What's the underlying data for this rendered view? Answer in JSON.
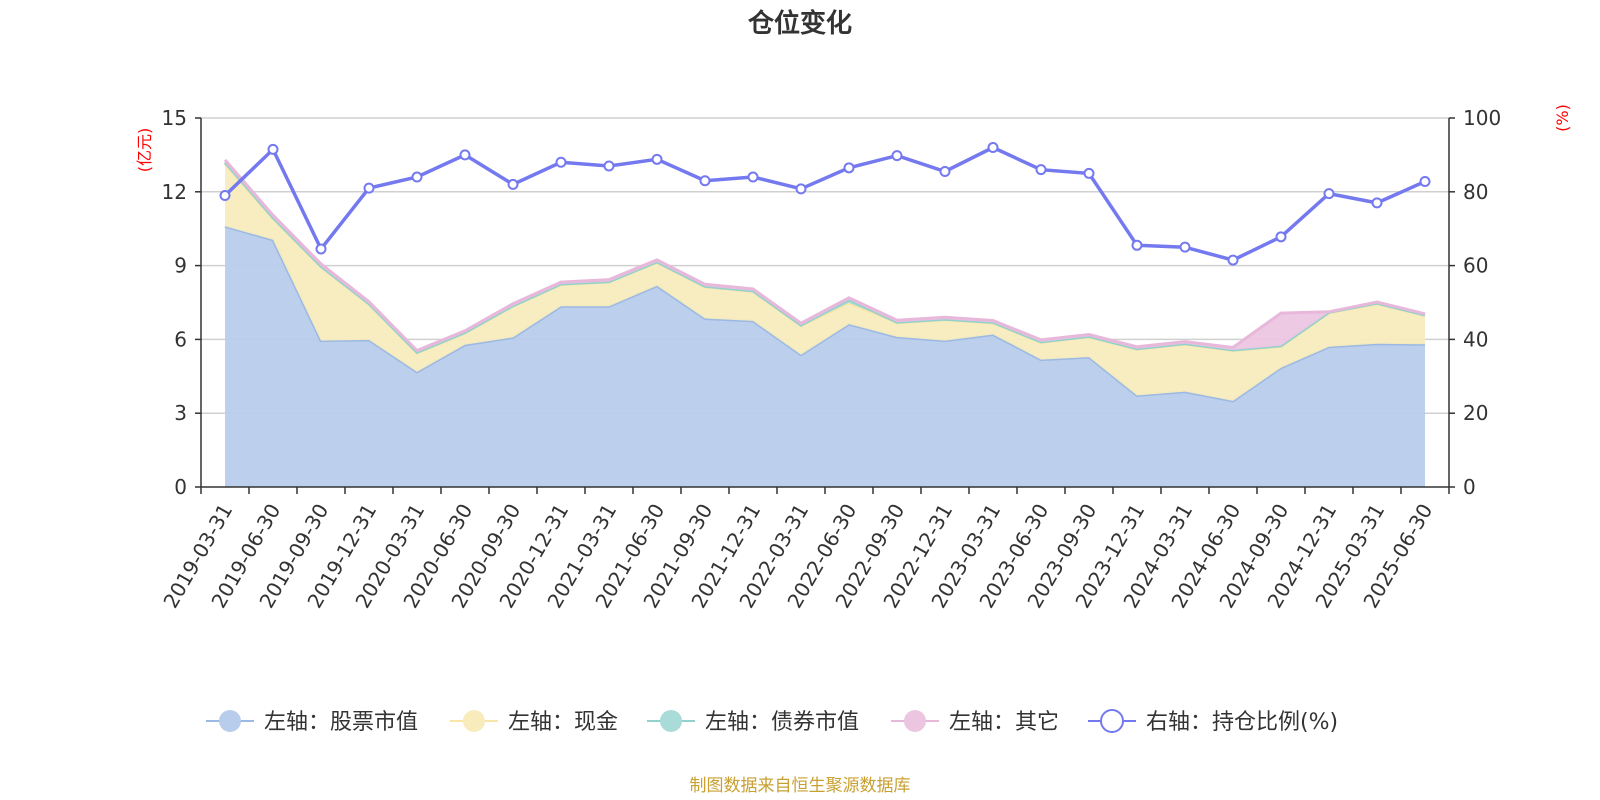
{
  "chart_data": {
    "type": "area",
    "title": "仓位变化",
    "left_axis": {
      "unit_label": "(亿元)",
      "ylim": [
        0,
        15
      ],
      "ticks": [
        "0",
        "3",
        "6",
        "9",
        "12",
        "15"
      ],
      "color": "#ff0000"
    },
    "right_axis": {
      "unit_label": "(%)",
      "ylim": [
        0,
        100
      ],
      "ticks": [
        "0",
        "20",
        "40",
        "60",
        "80",
        "100"
      ],
      "color": "#ff0000"
    },
    "grid": true,
    "legend_position": "bottom",
    "categories": [
      "2019-03-31",
      "2019-06-30",
      "2019-09-30",
      "2019-12-31",
      "2020-03-31",
      "2020-06-30",
      "2020-09-30",
      "2020-12-31",
      "2021-03-31",
      "2021-06-30",
      "2021-09-30",
      "2021-12-31",
      "2022-03-31",
      "2022-06-30",
      "2022-09-30",
      "2022-12-31",
      "2023-03-31",
      "2023-06-30",
      "2023-09-30",
      "2023-12-31",
      "2024-03-31",
      "2024-06-30",
      "2024-09-30",
      "2024-12-31",
      "2025-03-31",
      "2025-06-30"
    ],
    "stacked_series": [
      {
        "name": "左轴：股票市值",
        "axis": "left",
        "color": "#9bb9e3",
        "fill": "#b8cceb",
        "values": [
          10.6,
          10.05,
          5.95,
          5.98,
          4.68,
          5.78,
          6.08,
          7.35,
          7.35,
          8.18,
          6.85,
          6.75,
          5.38,
          6.62,
          6.1,
          5.95,
          6.2,
          5.18,
          5.28,
          3.72,
          3.88,
          3.5,
          4.85,
          5.7,
          5.82,
          5.8
        ]
      },
      {
        "name": "左轴：现金",
        "axis": "left",
        "color": "#f8e6a6",
        "fill": "#f8ecbd",
        "values": [
          2.55,
          0.85,
          3.0,
          1.45,
          0.77,
          0.48,
          1.27,
          0.88,
          0.98,
          0.95,
          1.29,
          1.2,
          1.18,
          0.87,
          0.58,
          0.85,
          0.47,
          0.7,
          0.82,
          1.88,
          1.93,
          2.05,
          0.87,
          1.38,
          1.63,
          1.17
        ]
      },
      {
        "name": "左轴：债券市值",
        "axis": "left",
        "color": "#93d1ce",
        "fill": "#a9dbd8",
        "values": [
          0.05,
          0.05,
          0.02,
          0.02,
          0.02,
          0.02,
          0.02,
          0.02,
          0.02,
          0.02,
          0.02,
          0.02,
          0.02,
          0.12,
          0.02,
          0.02,
          0.02,
          0.02,
          0.02,
          0.02,
          0.02,
          0.02,
          0.02,
          0.02,
          0.02,
          0.02
        ]
      },
      {
        "name": "左轴：其它",
        "axis": "left",
        "color": "#e8b8db",
        "fill": "#ecc6e1",
        "values": [
          0.1,
          0.1,
          0.1,
          0.08,
          0.08,
          0.07,
          0.08,
          0.08,
          0.08,
          0.08,
          0.08,
          0.08,
          0.08,
          0.08,
          0.08,
          0.08,
          0.08,
          0.08,
          0.08,
          0.08,
          0.08,
          0.1,
          1.33,
          0.02,
          0.05,
          0.05
        ]
      }
    ],
    "line_series": {
      "name": "右轴：持仓比例(%)",
      "axis": "right",
      "color": "#7479ef",
      "values": [
        79,
        91.5,
        64.5,
        81,
        84,
        90,
        82,
        88,
        87,
        88.8,
        83,
        84,
        80.8,
        86.5,
        89.8,
        85.5,
        92,
        86,
        85,
        65.5,
        65,
        61.5,
        67.8,
        79.5,
        77,
        82.8
      ]
    },
    "source_text": "制图数据来自恒生聚源数据库",
    "source_color": "#c8a032",
    "text_color": "#333333",
    "grid_color": "#d0d0d0"
  }
}
